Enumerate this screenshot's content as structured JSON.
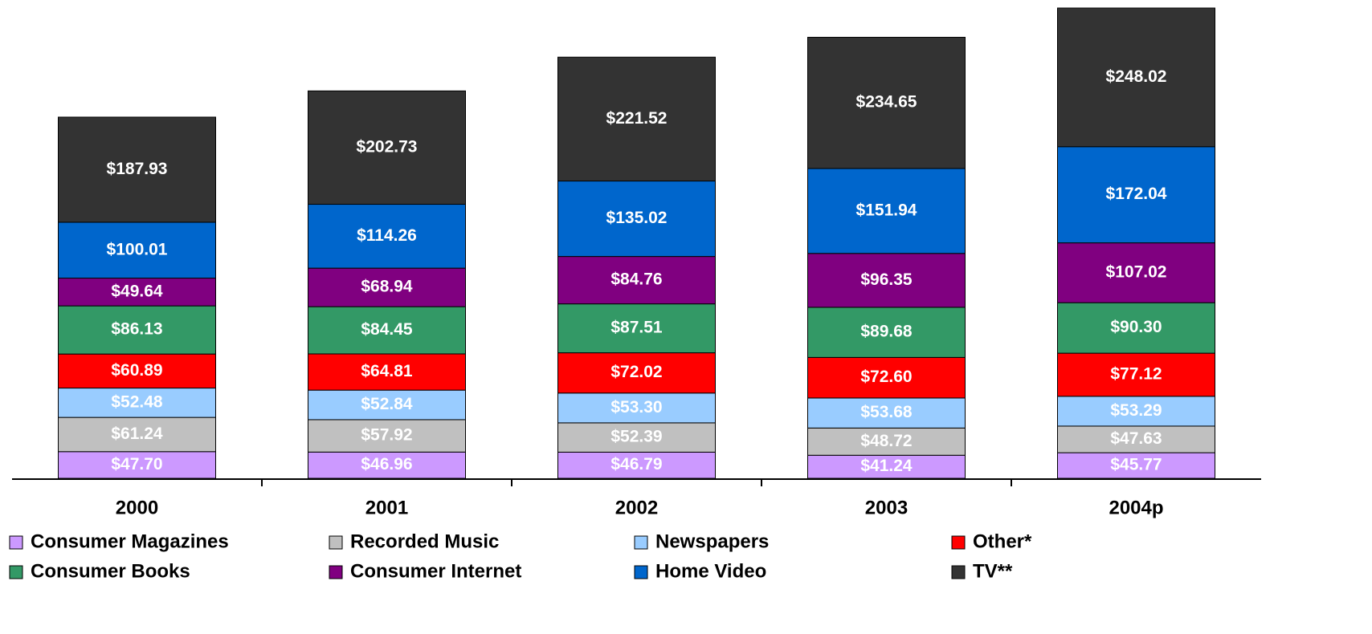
{
  "chart_data": {
    "type": "stacked_bar",
    "categories": [
      "2000",
      "2001",
      "2002",
      "2003",
      "2004p"
    ],
    "series": [
      {
        "name": "Consumer Magazines",
        "color": "#cc99ff",
        "values": [
          47.7,
          46.96,
          46.79,
          41.24,
          45.77
        ],
        "value_labels": [
          "$47.70",
          "$46.96",
          "$46.79",
          "$41.24",
          "$45.77"
        ]
      },
      {
        "name": "Recorded Music",
        "color": "#c0c0c0",
        "values": [
          61.24,
          57.92,
          52.39,
          48.72,
          47.63
        ],
        "value_labels": [
          "$61.24",
          "$57.92",
          "$52.39",
          "$48.72",
          "$47.63"
        ]
      },
      {
        "name": "Newspapers",
        "color": "#99ccff",
        "values": [
          52.48,
          52.84,
          53.3,
          53.68,
          53.29
        ],
        "value_labels": [
          "$52.48",
          "$52.84",
          "$53.30",
          "$53.68",
          "$53.29"
        ]
      },
      {
        "name": "Other*",
        "color": "#ff0000",
        "values": [
          60.89,
          64.81,
          72.02,
          72.6,
          77.12
        ],
        "value_labels": [
          "$60.89",
          "$64.81",
          "$72.02",
          "$72.60",
          "$77.12"
        ]
      },
      {
        "name": "Consumer Books",
        "color": "#339966",
        "values": [
          86.13,
          84.45,
          87.51,
          89.68,
          90.3
        ],
        "value_labels": [
          "$86.13",
          "$84.45",
          "$87.51",
          "$89.68",
          "$90.30"
        ]
      },
      {
        "name": "Consumer Internet",
        "color": "#800080",
        "values": [
          49.64,
          68.94,
          84.76,
          96.35,
          107.02
        ],
        "value_labels": [
          "$49.64",
          "$68.94",
          "$84.76",
          "$96.35",
          "$107.02"
        ]
      },
      {
        "name": "Home Video",
        "color": "#0066cc",
        "values": [
          100.01,
          114.26,
          135.02,
          151.94,
          172.04
        ],
        "value_labels": [
          "$100.01",
          "$114.26",
          "$135.02",
          "$151.94",
          "$172.04"
        ]
      },
      {
        "name": "TV**",
        "color": "#333333",
        "values": [
          187.93,
          202.73,
          221.52,
          234.65,
          248.02
        ],
        "value_labels": [
          "$187.93",
          "$202.73",
          "$221.52",
          "$234.65",
          "$248.02"
        ]
      }
    ]
  }
}
